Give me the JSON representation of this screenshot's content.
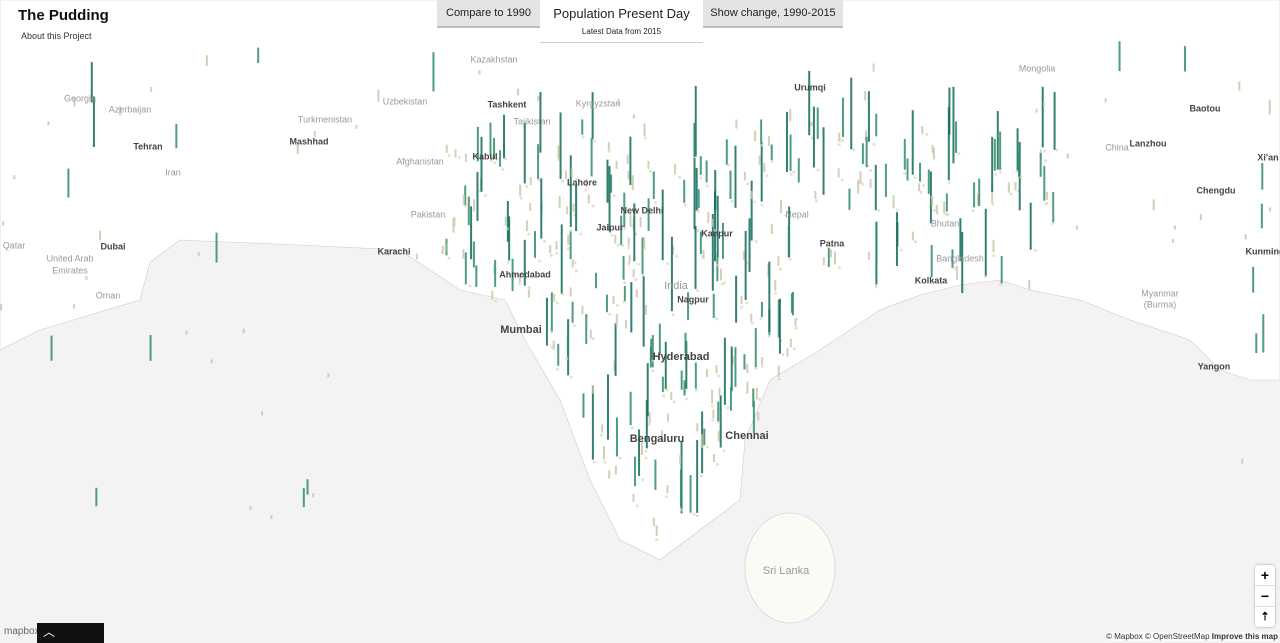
{
  "header": {
    "title": "The Pudding",
    "link": "About this Project"
  },
  "tabs": [
    {
      "label": "Compare to 1990"
    },
    {
      "label": "Population Present Day",
      "subtitle": "Latest Data from 2015"
    },
    {
      "label": "Show change, 1990-2015"
    }
  ],
  "map": {
    "labels": [
      "Kazakhstan",
      "Mongolia",
      "Uzbekistan",
      "Kyrgyzstan",
      "Tashkent",
      "Georgia",
      "Azerbaijan",
      "Turkmenistan",
      "Tajikistan",
      "Urumqi",
      "Baotou",
      "Tehran",
      "Mashhad",
      "Kabul",
      "Lanzhou",
      "China",
      "Xi'an",
      "Iran",
      "Afghanistan",
      "Lahore",
      "Chengdu",
      "New Delhi",
      "Pakistan",
      "Jaipur",
      "Kanpur",
      "Nepal",
      "Bhutan",
      "Qatar",
      "Dubai",
      "Karachi",
      "Patna",
      "Bangladesh",
      "Kunming",
      "United Arab",
      "Emirates",
      "Ahmedabad",
      "India",
      "Kolkata",
      "Oman",
      "Nagpur",
      "Myanmar",
      "(Burma)",
      "Mumbai",
      "Hyderabad",
      "Yangon",
      "Bengaluru",
      "Chennai",
      "Sri Lanka"
    ]
  },
  "controls": {
    "zoom_in": "+",
    "zoom_out": "−",
    "reset": "⇡"
  },
  "attribution": {
    "logo": "mapbox",
    "mapbox": "© Mapbox",
    "osm": "© OpenStreetMap",
    "improve": "Improve this map"
  }
}
